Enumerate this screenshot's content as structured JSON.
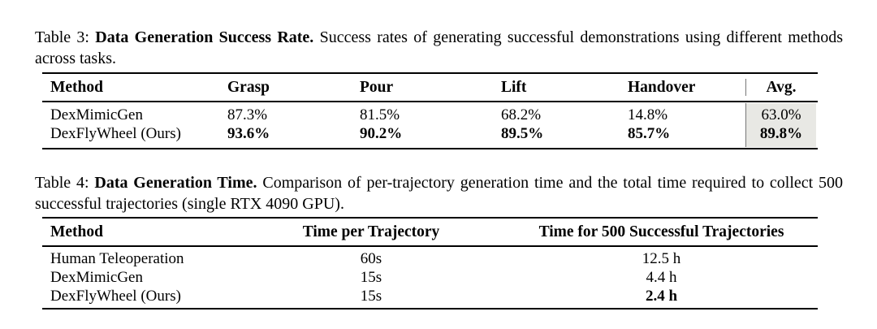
{
  "page": {
    "background_color": "#ffffff",
    "text_color": "#000000",
    "rule_color": "#000000",
    "highlight_color": "#e8e8e4"
  },
  "table3": {
    "caption_prefix": "Table 3:",
    "caption_bold": "Data Generation Success Rate.",
    "caption_rest": "Success rates of generating successful demonstrations using different methods across tasks.",
    "headers": {
      "method": "Method",
      "grasp": "Grasp",
      "pour": "Pour",
      "lift": "Lift",
      "handover": "Handover",
      "avg": "Avg."
    },
    "rows": [
      {
        "method": "DexMimicGen",
        "grasp": "87.3%",
        "pour": "81.5%",
        "lift": "68.2%",
        "handover": "14.8%",
        "avg": "63.0%",
        "emphasis": false
      },
      {
        "method": "DexFlyWheel (Ours)",
        "grasp": "93.6%",
        "pour": "90.2%",
        "lift": "89.5%",
        "handover": "85.7%",
        "avg": "89.8%",
        "emphasis": true
      }
    ]
  },
  "table4": {
    "caption_prefix": "Table 4:",
    "caption_bold": "Data Generation Time.",
    "caption_rest": "Comparison of per-trajectory generation time and the total time required to collect 500 successful trajectories (single RTX 4090 GPU).",
    "headers": {
      "method": "Method",
      "time_per_trajectory": "Time per Trajectory",
      "time_500": "Time for 500 Successful Trajectories"
    },
    "rows": [
      {
        "method": "Human Teleoperation",
        "time_per": "60s",
        "time_500": "12.5 h",
        "emphasis": false
      },
      {
        "method": "DexMimicGen",
        "time_per": "15s",
        "time_500": "4.4 h",
        "emphasis": false
      },
      {
        "method": "DexFlyWheel (Ours)",
        "time_per": "15s",
        "time_500": "2.4 h",
        "emphasis": true
      }
    ]
  }
}
